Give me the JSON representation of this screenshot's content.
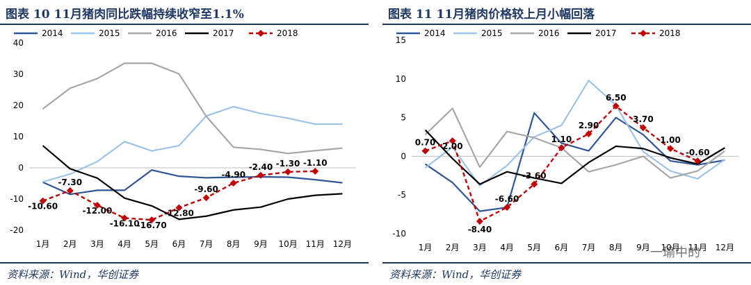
{
  "left": {
    "title": "图表 10   11月猪肉同比跌幅持续收窄至1.1%",
    "source": "资料来源：Wind，华创证券"
  },
  "right": {
    "title": "图表 11   11月猪肉价格较上月小幅回落",
    "source": "资料来源：Wind，华创证券"
  },
  "watermark": "一瑜中的",
  "colors": {
    "s2014": "#2f5597",
    "s2015": "#9dc3e6",
    "s2016": "#a6a6a6",
    "s2017": "#000000",
    "s2018": "#c00000"
  },
  "chart_data": [
    {
      "type": "line",
      "title": "11月猪肉同比跌幅持续收窄至1.1%",
      "categories": [
        "1月",
        "2月",
        "3月",
        "4月",
        "5月",
        "6月",
        "7月",
        "8月",
        "9月",
        "10月",
        "11月",
        "12月"
      ],
      "ylim": [
        -20,
        40
      ],
      "yticks": [
        40,
        30,
        20,
        10,
        0,
        -10,
        -20
      ],
      "legend": "top",
      "series": [
        {
          "name": "2014",
          "values": [
            -4.6,
            -8.5,
            -7.2,
            -7.2,
            -0.7,
            -2.7,
            -3.2,
            -3.0,
            -2.9,
            -3.0,
            -3.8,
            -4.8
          ]
        },
        {
          "name": "2015",
          "values": [
            -4.5,
            -2.0,
            2.0,
            8.4,
            5.4,
            7.1,
            16.6,
            19.6,
            17.4,
            15.9,
            14.0,
            14.0
          ]
        },
        {
          "name": "2016",
          "values": [
            18.9,
            25.5,
            28.6,
            33.5,
            33.5,
            30.1,
            16.5,
            6.6,
            5.9,
            4.6,
            5.5,
            6.3
          ]
        },
        {
          "name": "2017",
          "values": [
            7.1,
            -0.3,
            -3.3,
            -9.7,
            -12.2,
            -16.5,
            -15.5,
            -13.5,
            -12.6,
            -10.0,
            -8.8,
            -8.3
          ]
        },
        {
          "name": "2018",
          "values": [
            -10.6,
            -7.3,
            -12.0,
            -16.1,
            -16.7,
            -12.8,
            -9.6,
            -4.9,
            -2.4,
            -1.3,
            -1.1,
            null
          ],
          "labels": [
            "-10.60",
            "-7.30",
            "-12.00",
            "-16.10",
            "-16.70",
            "-12.80",
            "-9.60",
            "-4.90",
            "-2.40",
            "-1.30",
            "-1.10",
            ""
          ]
        }
      ]
    },
    {
      "type": "line",
      "title": "11月猪肉价格较上月小幅回落",
      "categories": [
        "1月",
        "2月",
        "3月",
        "4月",
        "5月",
        "6月",
        "7月",
        "8月",
        "9月",
        "10月",
        "11月",
        "12月"
      ],
      "ylim": [
        -10,
        15
      ],
      "yticks": [
        15,
        10,
        5,
        0,
        -5,
        -10
      ],
      "legend": "top",
      "series": [
        {
          "name": "2014",
          "values": [
            -1.0,
            -3.4,
            -7.1,
            -6.6,
            5.6,
            1.7,
            0.7,
            5.0,
            2.8,
            -0.6,
            -1.1,
            -0.5
          ]
        },
        {
          "name": "2015",
          "values": [
            -1.5,
            1.2,
            -3.8,
            -1.2,
            2.5,
            4.0,
            9.8,
            6.6,
            0.6,
            -1.9,
            -2.9,
            -0.4
          ]
        },
        {
          "name": "2016",
          "values": [
            2.8,
            6.2,
            -1.4,
            3.2,
            2.4,
            1.1,
            -2.0,
            -1.1,
            0.0,
            -2.8,
            -1.9,
            0.7
          ]
        },
        {
          "name": "2017",
          "values": [
            3.4,
            -0.3,
            -3.6,
            -2.0,
            -2.8,
            -3.5,
            -0.8,
            1.3,
            1.0,
            -0.2,
            -1.0,
            1.1
          ]
        },
        {
          "name": "2018",
          "values": [
            0.7,
            2.0,
            -8.4,
            -6.6,
            -3.6,
            1.1,
            2.9,
            6.5,
            3.7,
            1.0,
            -0.6,
            null
          ],
          "labels": [
            "0.70",
            "2.00",
            "-8.40",
            "-6.60",
            "-3.60",
            "1.10",
            "2.90",
            "6.50",
            "3.70",
            "1.00",
            "-0.60",
            ""
          ]
        }
      ]
    }
  ]
}
